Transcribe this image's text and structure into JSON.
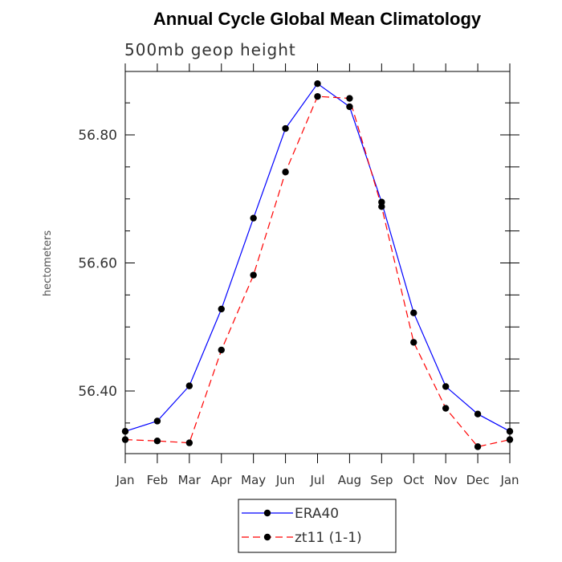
{
  "chart_data": {
    "type": "line",
    "title": "Annual Cycle Global Mean Climatology",
    "subtitle": "500mb geop height",
    "xlabel": "",
    "ylabel": "hectometers",
    "categories": [
      "Jan",
      "Feb",
      "Mar",
      "Apr",
      "May",
      "Jun",
      "Jul",
      "Aug",
      "Sep",
      "Oct",
      "Nov",
      "Dec",
      "Jan"
    ],
    "yticks": [
      56.4,
      56.6,
      56.8
    ],
    "ytick_labels": [
      "56.40",
      "56.60",
      "56.80"
    ],
    "ylim": [
      56.3,
      56.9
    ],
    "series": [
      {
        "name": "ERA40",
        "color": "#0000ff",
        "dash": "solid",
        "values": [
          56.337,
          56.353,
          56.408,
          56.528,
          56.67,
          56.81,
          56.88,
          56.844,
          56.695,
          56.522,
          56.407,
          56.364,
          56.337
        ]
      },
      {
        "name": "zt11 (1-1)",
        "color": "#ff0000",
        "dash": "dashed",
        "values": [
          56.324,
          56.322,
          56.319,
          56.464,
          56.581,
          56.742,
          56.86,
          56.857,
          56.688,
          56.476,
          56.373,
          56.313,
          56.324
        ]
      }
    ],
    "legend": {
      "position": "bottom-center",
      "entries": [
        "ERA40",
        "zt11 (1-1)"
      ]
    }
  }
}
